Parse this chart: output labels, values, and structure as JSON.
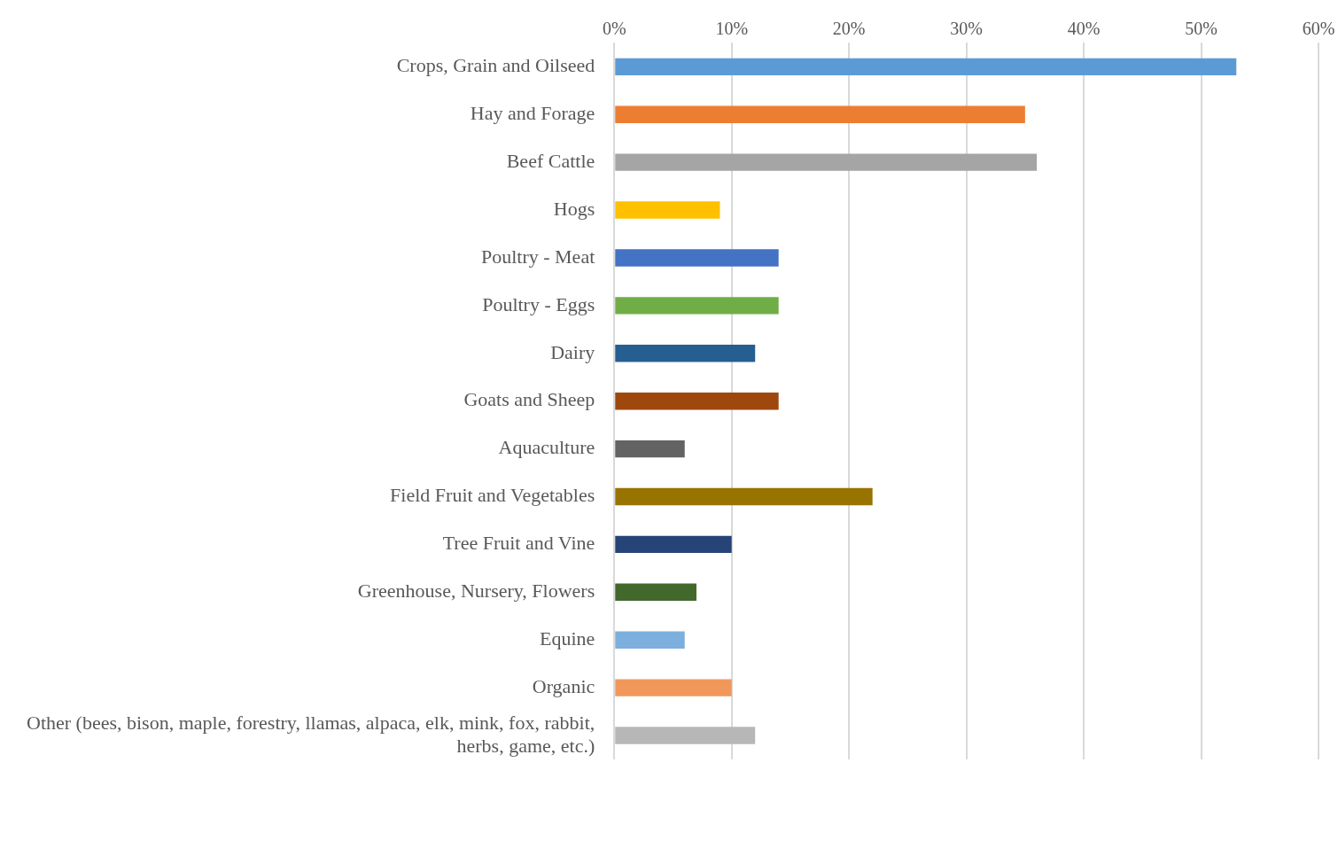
{
  "chart_data": {
    "type": "bar",
    "orientation": "horizontal",
    "categories": [
      "Crops, Grain and Oilseed",
      "Hay and Forage",
      "Beef Cattle",
      "Hogs",
      "Poultry - Meat",
      "Poultry - Eggs",
      "Dairy",
      "Goats and Sheep",
      "Aquaculture",
      "Field Fruit and Vegetables",
      "Tree Fruit and Vine",
      "Greenhouse, Nursery, Flowers",
      "Equine",
      "Organic",
      "Other (bees, bison, maple, forestry, llamas, alpaca, elk, mink, fox, rabbit, herbs, game, etc.)"
    ],
    "values": [
      53,
      35,
      36,
      9,
      14,
      14,
      12,
      14,
      6,
      22,
      10,
      7,
      6,
      10,
      12
    ],
    "colors": [
      "#5b9bd5",
      "#ed7d31",
      "#a5a5a5",
      "#ffc000",
      "#4472c4",
      "#70ad47",
      "#255e91",
      "#9e480e",
      "#636363",
      "#997300",
      "#264478",
      "#43682b",
      "#7cafdd",
      "#f1975a",
      "#b7b7b7"
    ],
    "xlim": [
      0,
      60
    ],
    "xticks": [
      {
        "value": 0,
        "label": "0%"
      },
      {
        "value": 10,
        "label": "10%"
      },
      {
        "value": 20,
        "label": "20%"
      },
      {
        "value": 30,
        "label": "30%"
      },
      {
        "value": 40,
        "label": "40%"
      },
      {
        "value": 50,
        "label": "50%"
      },
      {
        "value": 60,
        "label": "60%"
      }
    ],
    "grid": "x",
    "legend": false
  }
}
